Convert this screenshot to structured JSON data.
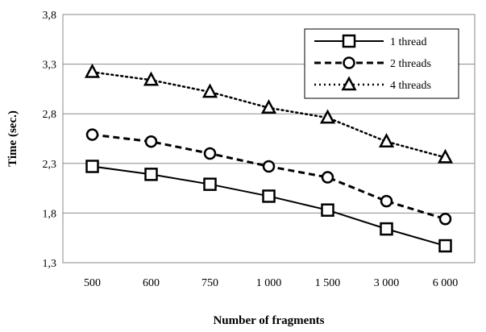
{
  "chart_data": {
    "type": "line",
    "categories": [
      "500",
      "600",
      "750",
      "1 000",
      "1 500",
      "3 000",
      "6 000"
    ],
    "yticks": [
      "1,3",
      "1,8",
      "2,3",
      "2,8",
      "3,3",
      "3,8"
    ],
    "ylim": [
      1.3,
      3.8
    ],
    "xlabel": "Number of fragments",
    "ylabel": "Time (sec.)",
    "grid": "horizontal",
    "legend_position": "top-right",
    "series": [
      {
        "name": "1 thread",
        "marker": "square",
        "dash": "solid",
        "values": [
          2.27,
          2.19,
          2.09,
          1.97,
          1.83,
          1.64,
          1.47
        ]
      },
      {
        "name": "2 threads",
        "marker": "circle",
        "dash": "dashed",
        "values": [
          2.59,
          2.52,
          2.4,
          2.27,
          2.16,
          1.92,
          1.74
        ]
      },
      {
        "name": "4 threads",
        "marker": "triangle",
        "dash": "dotted",
        "values": [
          3.22,
          3.14,
          3.02,
          2.86,
          2.76,
          2.52,
          2.36
        ]
      }
    ]
  }
}
